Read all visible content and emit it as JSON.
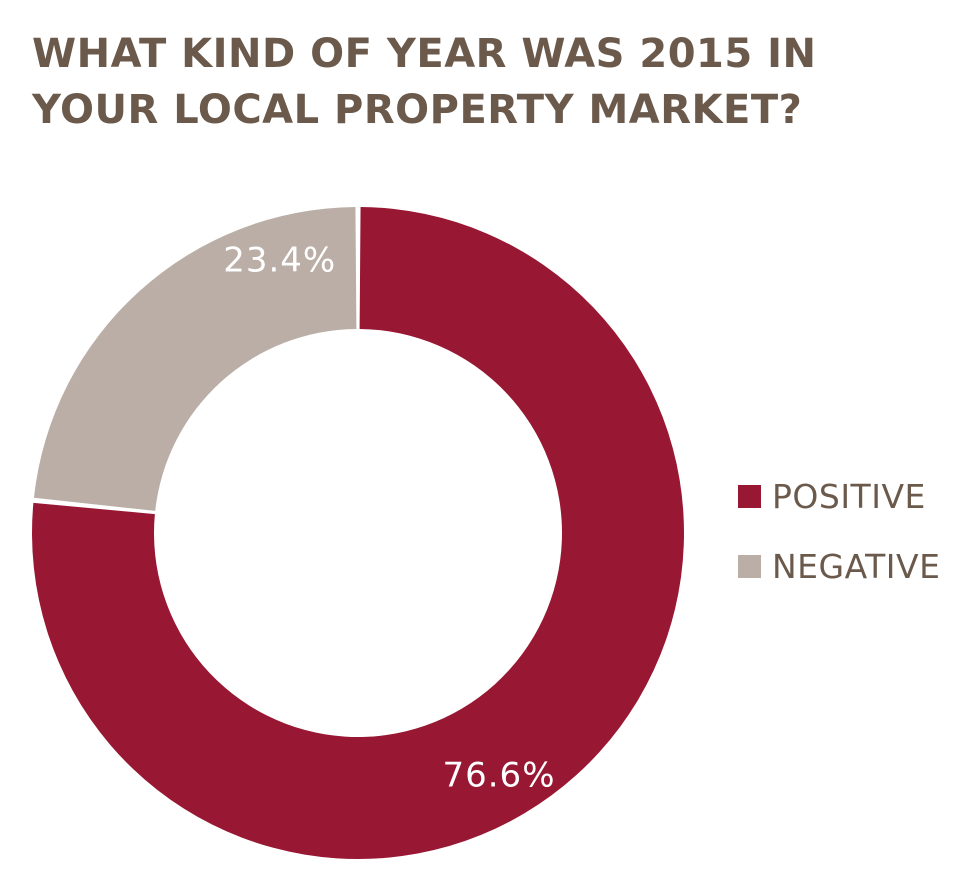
{
  "title_lines": [
    "WHAT KIND OF YEAR WAS 2015 IN",
    "YOUR LOCAL PROPERTY MARKET?"
  ],
  "colors": {
    "positive": "#981733",
    "negative": "#baaea6",
    "title": "#6b5a4b"
  },
  "chart_data": {
    "type": "pie",
    "variant": "donut",
    "title": "WHAT KIND OF YEAR WAS 2015 IN YOUR LOCAL PROPERTY MARKET?",
    "legend_position": "right",
    "slices": [
      {
        "name": "POSITIVE",
        "value": 76.6,
        "label": "76.6%",
        "color": "#981733"
      },
      {
        "name": "NEGATIVE",
        "value": 23.4,
        "label": "23.4%",
        "color": "#baaea6"
      }
    ]
  }
}
